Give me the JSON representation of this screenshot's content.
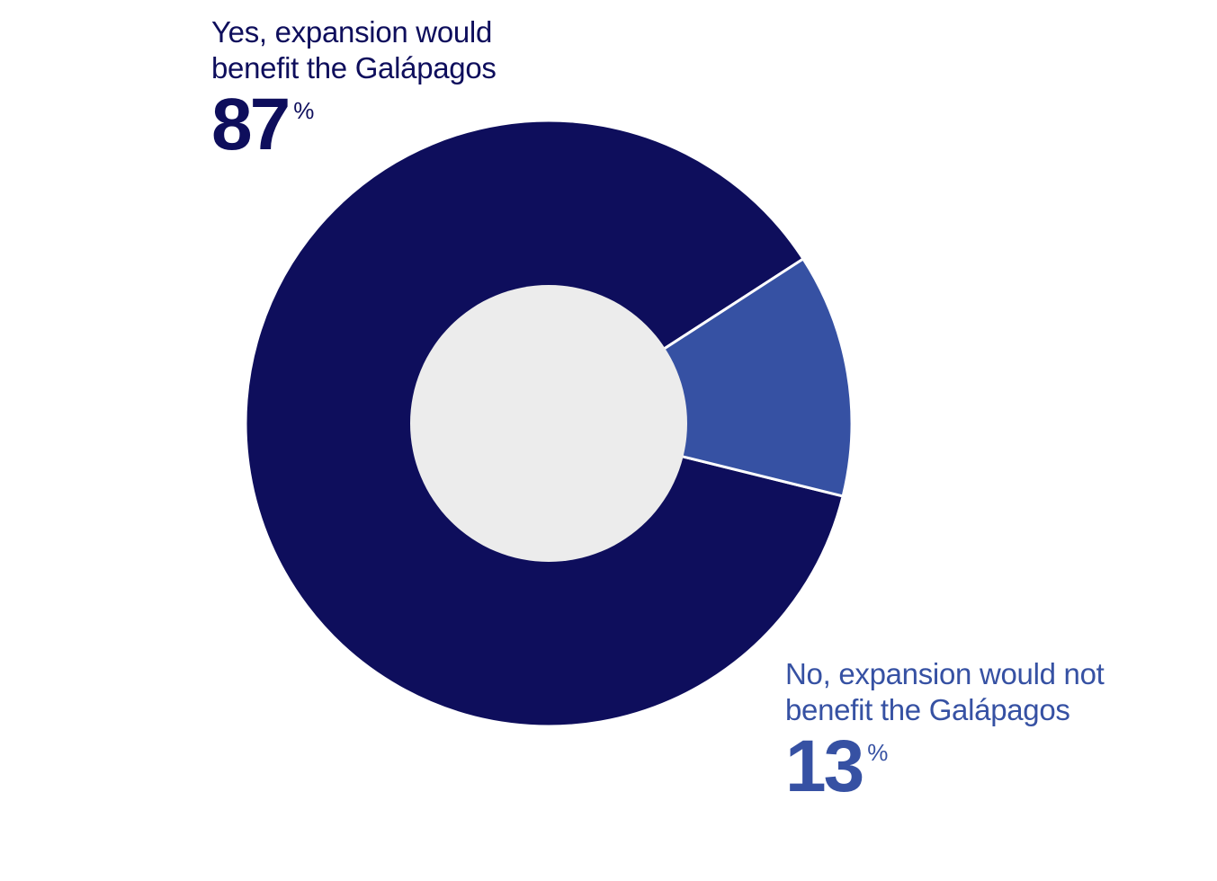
{
  "chart_data": {
    "type": "pie",
    "variant": "donut",
    "slices": [
      {
        "label_lines": [
          "Yes, expansion would",
          "benefit the Galápagos"
        ],
        "value": 87,
        "value_text": "87",
        "unit": "%",
        "color": "#0e0e5c"
      },
      {
        "label_lines": [
          "No, expansion would not",
          "benefit the Galápagos"
        ],
        "value": 13,
        "value_text": "13",
        "unit": "%",
        "color": "#3651a3"
      }
    ],
    "hole_color": "#ececec",
    "separator_color": "#ffffff",
    "legend": "none"
  }
}
